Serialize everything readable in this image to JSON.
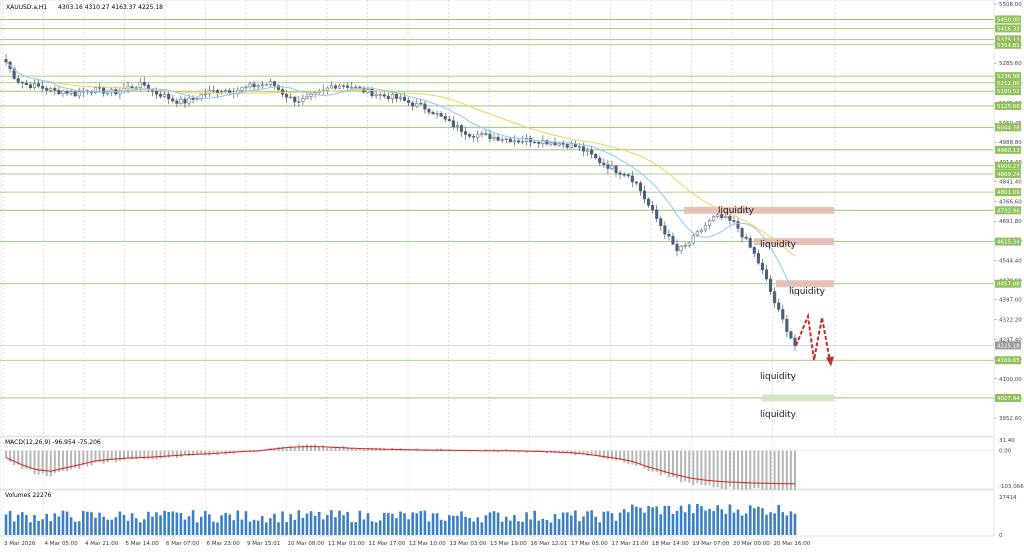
{
  "header": {
    "symbol": "XAUUSD.a,H1",
    "ohlc": "4303.16 4310.27 4163.37 4225.18"
  },
  "colors": {
    "background": "#ffffff",
    "candle": "#4a5f78",
    "ma_fast": "#8ec8f0",
    "ma_slow": "#f2d25a",
    "level_line": "#8fc05a",
    "level_tag": "#8fc05a",
    "zone_red": "#e8b9b3",
    "zone_green": "#cfe6bd",
    "current_price_tag": "#9a9a9a",
    "macd_hist": "#b5b5b5",
    "macd_signal": "#d62020",
    "volume_bar": "#3a7fc8",
    "arrow": "#c0302a"
  },
  "chart_data": [
    {
      "type": "candlestick",
      "title": "XAUUSD.a,H1",
      "ylim": [
        3900,
        5508
      ],
      "y_ticks": [
        "5508.00",
        "5358.45",
        "5285.60",
        "5210.90",
        "5135.30",
        "5060.45",
        "4988.80",
        "4914.40",
        "4841.40",
        "4766.60",
        "4691.80",
        "4620.00",
        "4544.40",
        "4470.00",
        "4397.00",
        "4322.20",
        "4247.40",
        "4175.00",
        "4100.00",
        "4025.00",
        "3952.60"
      ],
      "x_ticks": [
        "3 Mar 2026",
        "4 Mar 05:00",
        "4 Mar 21:00",
        "5 Mar 14:00",
        "6 Mar 07:00",
        "6 Mar 23:00",
        "9 Mar 15:01",
        "10 Mar 08:00",
        "11 Mar 01:00",
        "11 Mar 17:00",
        "12 Mar 10:00",
        "13 Mar 03:00",
        "13 Mar 19:00",
        "16 Mar 12:01",
        "17 Mar 05:00",
        "17 Mar 21:00",
        "18 Mar 14:00",
        "19 Mar 07:00",
        "20 Mar 00:00",
        "20 Mar 16:00"
      ],
      "price_levels": [
        "5450.00",
        "5416.33",
        "5375.13",
        "5354.81",
        "5236.98",
        "5212.00",
        "5180.52",
        "5125.00",
        "5044.78",
        "4960.13",
        "4900.27",
        "4869.24",
        "4801.09",
        "4732.96",
        "4615.34",
        "4457.08",
        "4225.18",
        "4169.65",
        "4027.94"
      ],
      "current_price": "4225.18",
      "close_series": [
        5290,
        5225,
        5205,
        5200,
        5190,
        5180,
        5180,
        5170,
        5185,
        5185,
        5180,
        5175,
        5190,
        5200,
        5205,
        5175,
        5165,
        5145,
        5140,
        5150,
        5170,
        5180,
        5185,
        5180,
        5190,
        5200,
        5205,
        5210,
        5175,
        5150,
        5145,
        5160,
        5175,
        5200,
        5205,
        5198,
        5185,
        5175,
        5165,
        5160,
        5150,
        5135,
        5125,
        5110,
        5085,
        5060,
        5040,
        5020,
        5015,
        5010,
        5005,
        5000,
        4995,
        4998,
        4995,
        4990,
        4985,
        4980,
        4970,
        4950,
        4920,
        4900,
        4880,
        4870,
        4830,
        4760,
        4700,
        4640,
        4580,
        4600,
        4640,
        4680,
        4710,
        4700,
        4680,
        4620,
        4560,
        4480,
        4380,
        4300,
        4225
      ]
    },
    {
      "type": "line",
      "title": "MACD(12,26,9) -96.954 -75.206",
      "y_ticks": [
        "31.40",
        "0.00",
        "-103.066"
      ],
      "series": [
        {
          "values": [
            -20,
            -40,
            -55,
            -60,
            -50,
            -40,
            -30,
            -25,
            -22,
            -20,
            -18,
            -15,
            -12,
            -10,
            -8,
            -5,
            -2,
            0,
            5,
            10,
            12,
            12,
            10,
            8,
            6,
            5,
            4,
            3,
            2,
            2,
            1,
            1,
            0,
            0,
            0,
            -1,
            -2,
            -4,
            -6,
            -10,
            -16,
            -22,
            -30,
            -45,
            -58,
            -70,
            -80,
            -86,
            -90,
            -92,
            -94,
            -95,
            -96,
            -97
          ]
        }
      ]
    },
    {
      "type": "bar",
      "title": "Volumes 22276",
      "y_ticks": [
        "27414",
        "0"
      ]
    }
  ],
  "annotations": {
    "liquidity_1": "liquidity",
    "liquidity_2": "liquidity",
    "liquidity_3": "liquidity",
    "liquidity_4": "liquidity",
    "liquidity_5": "liquidity"
  }
}
